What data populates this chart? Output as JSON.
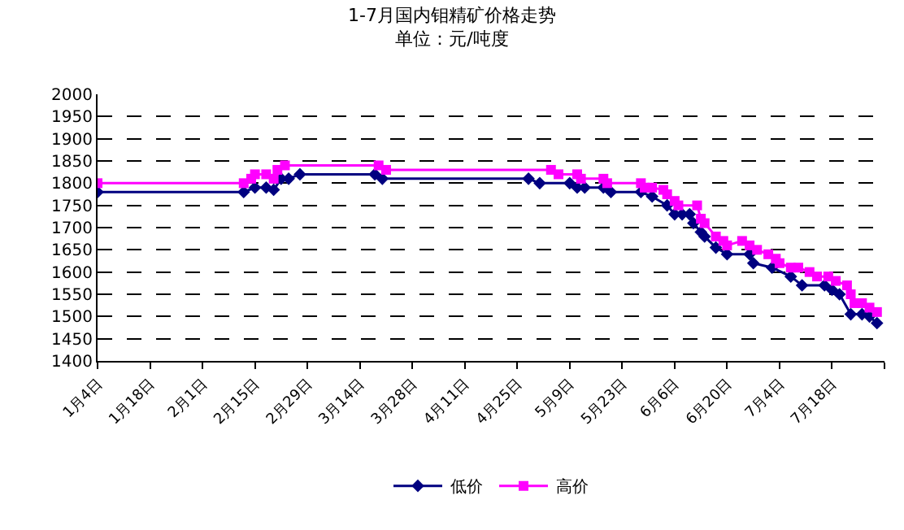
{
  "chart_data": {
    "type": "line",
    "title": "1-7月国内钼精矿价格走势",
    "subtitle": "单位：元/吨度",
    "xlim": [
      "--01-04",
      "--08-01"
    ],
    "xticks": [
      {
        "value": "--01-04",
        "label": "1月4日"
      },
      {
        "value": "--01-18",
        "label": "1月18日"
      },
      {
        "value": "--02-01",
        "label": "2月1日"
      },
      {
        "value": "--02-15",
        "label": "2月15日"
      },
      {
        "value": "--02-29",
        "label": "2月29日"
      },
      {
        "value": "--03-14",
        "label": "3月14日"
      },
      {
        "value": "--03-28",
        "label": "3月28日"
      },
      {
        "value": "--04-11",
        "label": "4月11日"
      },
      {
        "value": "--04-25",
        "label": "4月25日"
      },
      {
        "value": "--05-09",
        "label": "5月9日"
      },
      {
        "value": "--05-23",
        "label": "5月23日"
      },
      {
        "value": "--06-06",
        "label": "6月6日"
      },
      {
        "value": "--06-20",
        "label": "6月20日"
      },
      {
        "value": "--07-04",
        "label": "7月4日"
      },
      {
        "value": "--07-18",
        "label": "7月18日"
      },
      {
        "value": "--08-01",
        "label": null
      }
    ],
    "ylim": [
      1400,
      2000
    ],
    "yticks": [
      1400,
      1450,
      1500,
      1550,
      1600,
      1650,
      1700,
      1750,
      1800,
      1850,
      1900,
      1950,
      2000
    ],
    "grid": "y",
    "legend": "bottom",
    "series": [
      {
        "name": "低价",
        "color": "#000080",
        "marker": "diamond",
        "x": [
          "--01-04",
          "--02-12",
          "--02-15",
          "--02-18",
          "--02-20",
          "--02-22",
          "--02-24",
          "--02-27",
          "--03-18",
          "--03-20",
          "--04-28",
          "--05-01",
          "--05-09",
          "--05-11",
          "--05-13",
          "--05-18",
          "--05-20",
          "--05-28",
          "--05-31",
          "--06-04",
          "--06-06",
          "--06-08",
          "--06-10",
          "--06-11",
          "--06-13",
          "--06-14",
          "--06-17",
          "--06-20",
          "--06-26",
          "--06-27",
          "--07-02",
          "--07-07",
          "--07-10",
          "--07-16",
          "--07-18",
          "--07-20",
          "--07-23",
          "--07-26",
          "--07-28",
          "--07-30"
        ],
        "values": [
          1780,
          1780,
          1790,
          1790,
          1785,
          1810,
          1810,
          1820,
          1820,
          1810,
          1810,
          1800,
          1800,
          1790,
          1790,
          1790,
          1780,
          1780,
          1770,
          1750,
          1730,
          1730,
          1730,
          1710,
          1690,
          1680,
          1655,
          1640,
          1640,
          1620,
          1610,
          1590,
          1570,
          1570,
          1560,
          1550,
          1505,
          1505,
          1500,
          1485
        ]
      },
      {
        "name": "高价",
        "color": "#ff00ff",
        "marker": "square",
        "x": [
          "--01-04",
          "--02-12",
          "--02-14",
          "--02-15",
          "--02-18",
          "--02-20",
          "--02-21",
          "--02-23",
          "--03-19",
          "--03-21",
          "--05-04",
          "--05-06",
          "--05-11",
          "--05-12",
          "--05-18",
          "--05-19",
          "--05-28",
          "--05-29",
          "--05-31",
          "--06-03",
          "--06-04",
          "--06-06",
          "--06-07",
          "--06-12",
          "--06-13",
          "--06-14",
          "--06-17",
          "--06-19",
          "--06-20",
          "--06-24",
          "--06-26",
          "--06-28",
          "--07-01",
          "--07-03",
          "--07-04",
          "--07-07",
          "--07-09",
          "--07-12",
          "--07-14",
          "--07-17",
          "--07-19",
          "--07-22",
          "--07-23",
          "--07-24",
          "--07-26",
          "--07-28",
          "--07-30"
        ],
        "values": [
          1800,
          1800,
          1810,
          1820,
          1820,
          1810,
          1830,
          1840,
          1840,
          1830,
          1830,
          1820,
          1820,
          1810,
          1810,
          1800,
          1800,
          1790,
          1790,
          1785,
          1775,
          1760,
          1750,
          1750,
          1720,
          1710,
          1680,
          1670,
          1660,
          1670,
          1660,
          1650,
          1640,
          1630,
          1620,
          1610,
          1610,
          1600,
          1590,
          1590,
          1580,
          1570,
          1550,
          1530,
          1530,
          1520,
          1510
        ]
      }
    ]
  }
}
